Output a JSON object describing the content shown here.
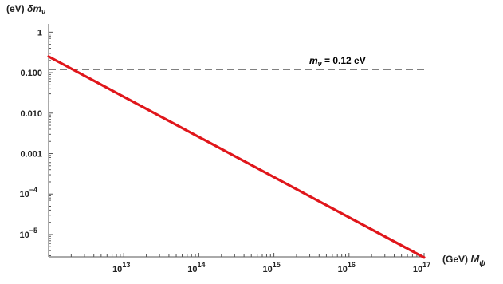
{
  "chart_data": {
    "type": "line",
    "x_scale": "log",
    "y_scale": "log",
    "x_label": {
      "unit": "(GeV)",
      "symbol": "M",
      "sub": "ψ"
    },
    "y_label": {
      "unit": "(eV)",
      "symbol": "δm",
      "sub": "ν"
    },
    "xlim": [
      1000000000000.0,
      1e+17
    ],
    "ylim": [
      2.8e-06,
      1.6
    ],
    "x_ticks": [
      {
        "value": 10000000000000.0,
        "base": "10",
        "exp": "13"
      },
      {
        "value": 100000000000000.0,
        "base": "10",
        "exp": "14"
      },
      {
        "value": 1000000000000000.0,
        "base": "10",
        "exp": "15"
      },
      {
        "value": 1e+16,
        "base": "10",
        "exp": "16"
      },
      {
        "value": 1e+17,
        "base": "10",
        "exp": "17"
      }
    ],
    "y_ticks": [
      {
        "value": 1,
        "text": "1"
      },
      {
        "value": 0.1,
        "text": "0.100"
      },
      {
        "value": 0.01,
        "text": "0.010"
      },
      {
        "value": 0.001,
        "text": "0.001"
      },
      {
        "value": 0.0001,
        "base": "10",
        "exp": "−4"
      },
      {
        "value": 1e-05,
        "base": "10",
        "exp": "−5"
      }
    ],
    "series": [
      {
        "color": "#e0161b",
        "x": [
          1000000000000.0,
          1e+17
        ],
        "y": [
          0.25,
          2.7e-06
        ]
      }
    ],
    "reference_lines": [
      {
        "y": 0.12,
        "style": "dashed",
        "color": "#808080",
        "label": {
          "symbol": "m",
          "sub": "ν",
          "text": " = 0.12 eV"
        }
      }
    ]
  }
}
